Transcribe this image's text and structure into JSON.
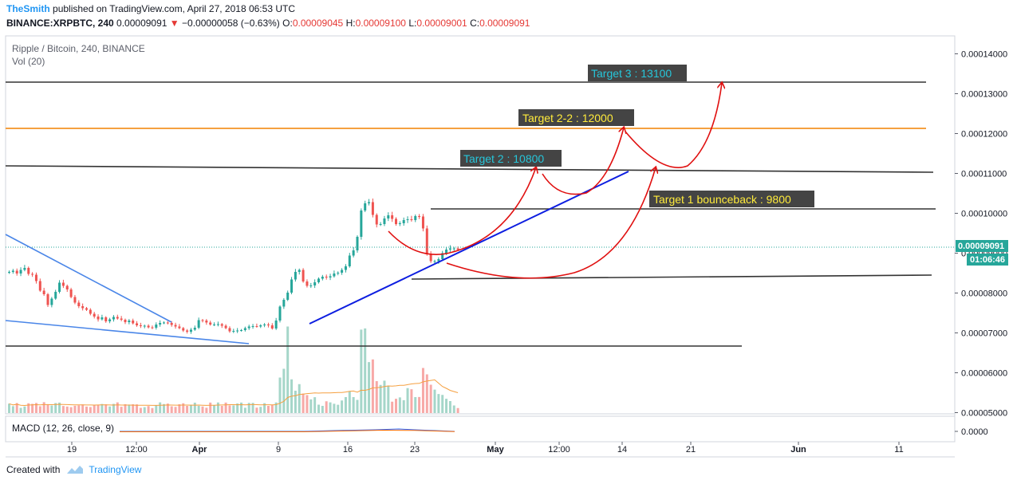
{
  "header": {
    "author": "TheSmith",
    "published": "published on TradingView.com, April 27, 2018 06:53 UTC",
    "symbol": "BINANCE:XRPBTC, 240",
    "price": "0.00009091",
    "change_arrow": "▼",
    "change": "−0.00000058 (−0.63%)",
    "o_label": "O:",
    "o_value": "0.00009045",
    "h_label": "H:",
    "h_value": "0.00009100",
    "l_label": "L:",
    "l_value": "0.00009001",
    "c_label": "C:",
    "c_value": "0.00009091"
  },
  "footer": {
    "created_with": "Created with",
    "brand": "TradingView"
  },
  "colors": {
    "up": "#26a69a",
    "down": "#ef5350",
    "vol_up": "#a5d6c9",
    "vol_down": "#f7a9a7",
    "target_cyan": "#26c6da",
    "target_yellow": "#ffeb3b",
    "label_bg": "#444444",
    "trend_blue": "#0d1ee0",
    "arrow_red": "#e01010",
    "orange_line": "#f5a040",
    "price_badge": "#26a69a"
  },
  "chart_data": {
    "type": "candlestick",
    "title": "Ripple / Bitcoin, 240, BINANCE",
    "volume_label": "Vol (20)",
    "macd_label": "MACD (12, 26, close, 9)",
    "macd_value": "0.0000",
    "current_price_label": "0.00009091",
    "countdown": "01:06:46",
    "ylim": [
      4.97e-05,
      0.0001445
    ],
    "y_ticks": [
      "0.00014000",
      "0.00013000",
      "0.00012000",
      "0.00011000",
      "0.00010000",
      "0.00009000",
      "0.00008000",
      "0.00007000",
      "0.00006000",
      "0.00005000"
    ],
    "x_ticks": [
      "19",
      "12:00",
      "Apr",
      "9",
      "16",
      "23",
      "May",
      "12:00",
      "14",
      "21",
      "Jun",
      "11"
    ],
    "annotations": [
      {
        "text": "Target 3 : 13100",
        "color": "cyan"
      },
      {
        "text": "Target 2-2 : 12000",
        "color": "yellow"
      },
      {
        "text": "Target 2 : 10800",
        "color": "cyan"
      },
      {
        "text": "Target 1 bounceback : 9800",
        "color": "yellow"
      }
    ],
    "levels": [
      0.000131,
      0.0001195,
      0.0001,
      6.63e-05
    ],
    "trend_lines": [
      {
        "name": "resistance",
        "from": 0.0001105,
        "to": 0.000109
      },
      {
        "name": "support",
        "from": 8.33e-05,
        "to": 8.37e-05
      },
      {
        "name": "uptrend",
        "from": 7.16e-05,
        "to": 0.000109
      }
    ],
    "series": [
      {
        "name": "close",
        "values": [
          8.53e-05,
          8.56e-05,
          8.49e-05,
          8.58e-05,
          8.63e-05,
          8.48e-05,
          8.46e-05,
          8.3e-05,
          8.06e-05,
          7.97e-05,
          7.7e-05,
          7.86e-05,
          8.03e-05,
          8.26e-05,
          8.18e-05,
          8.09e-05,
          7.9e-05,
          7.76e-05,
          7.67e-05,
          7.62e-05,
          7.58e-05,
          7.48e-05,
          7.41e-05,
          7.34e-05,
          7.39e-05,
          7.29e-05,
          7.34e-05,
          7.4e-05,
          7.36e-05,
          7.33e-05,
          7.27e-05,
          7.31e-05,
          7.24e-05,
          7.19e-05,
          7.17e-05,
          7.18e-05,
          7.14e-05,
          7.13e-05,
          7.21e-05,
          7.25e-05,
          7.26e-05,
          7.25e-05,
          7.2e-05,
          7.16e-05,
          7.12e-05,
          7.06e-05,
          7.03e-05,
          7.08e-05,
          7.13e-05,
          7.32e-05,
          7.31e-05,
          7.26e-05,
          7.21e-05,
          7.21e-05,
          7.22e-05,
          7.18e-05,
          7.12e-05,
          7.04e-05,
          7.05e-05,
          7.06e-05,
          7.07e-05,
          7.12e-05,
          7.16e-05,
          7.17e-05,
          7.16e-05,
          7.19e-05,
          7.21e-05,
          7.19e-05,
          7.11e-05,
          7.31e-05,
          7.66e-05,
          7.83e-05,
          8.01e-05,
          8.34e-05,
          8.53e-05,
          8.58e-05,
          8.29e-05,
          8.18e-05,
          8.19e-05,
          8.27e-05,
          8.36e-05,
          8.41e-05,
          8.39e-05,
          8.42e-05,
          8.49e-05,
          8.51e-05,
          8.58e-05,
          8.67e-05,
          8.94e-05,
          9.07e-05,
          9.41e-05,
          0.0001007,
          0.0001025,
          0.0001028,
          9.96e-05,
          9.72e-05,
          9.73e-05,
          9.87e-05,
          9.95e-05,
          9.86e-05,
          9.73e-05,
          9.75e-05,
          9.83e-05,
          9.85e-05,
          9.83e-05,
          9.93e-05,
          9.92e-05,
          9.62e-05,
          8.97e-05,
          8.8e-05,
          8.8e-05,
          8.85e-05,
          9e-05,
          9.09e-05,
          9.12e-05,
          9.12e-05,
          9.09e-05
        ]
      },
      {
        "name": "volume",
        "values": [
          0.94,
          0.69,
          1.0,
          0.52,
          0.66,
          0.98,
          0.92,
          1.01,
          0.68,
          1.09,
          0.87,
          0.76,
          1.0,
          1.05,
          0.71,
          0.65,
          0.59,
          0.73,
          0.77,
          0.86,
          0.65,
          0.6,
          0.83,
          0.8,
          0.91,
          0.87,
          0.66,
          0.92,
          1.07,
          0.63,
          0.89,
          0.85,
          0.88,
          0.87,
          0.52,
          0.59,
          0.7,
          0.5,
          0.77,
          1.07,
          0.9,
          0.95,
          0.68,
          0.62,
          0.88,
          0.98,
          0.72,
          0.83,
          1.04,
          0.72,
          0.66,
          0.53,
          1.05,
          0.79,
          1.06,
          0.72,
          1.05,
          0.77,
          0.77,
          0.96,
          1.05,
          0.53,
          1.02,
          1.02,
          0.54,
          0.62,
          0.99,
          0.72,
          0.82,
          1.06,
          3.56,
          4.44,
          8.68,
          3.38,
          2.24,
          2.9,
          1.95,
          1.8,
          1.37,
          1.59,
          0.84,
          0.72,
          1.18,
          1.07,
          0.93,
          0.83,
          1.26,
          1.6,
          2.17,
          1.6,
          1.32,
          8.37,
          8.49,
          5.11,
          5.38,
          3.2,
          2.82,
          3.25,
          2.74,
          1.14,
          1.43,
          1.57,
          1.29,
          2.5,
          2.39,
          1.6,
          1.61,
          4.52,
          3.88,
          2.84,
          2.35,
          1.91,
          1.82,
          1.43,
          1.2,
          0.76,
          0.5
        ]
      }
    ]
  }
}
